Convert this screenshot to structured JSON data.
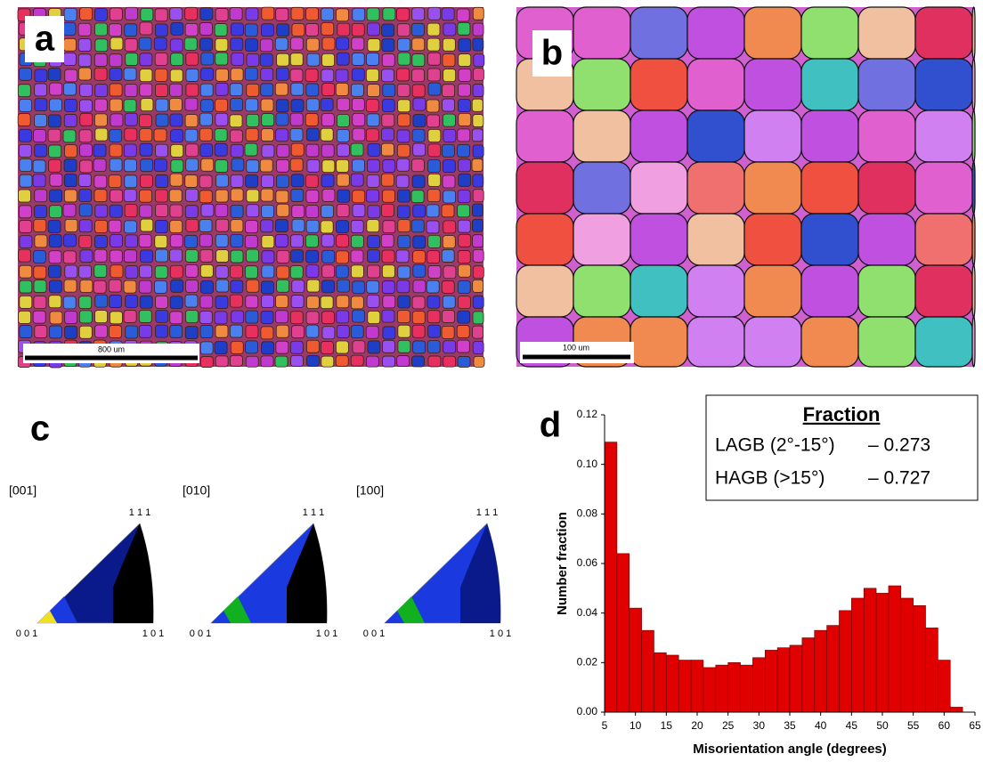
{
  "panels": {
    "a": {
      "label": "a",
      "scale_bar": "800 um"
    },
    "b": {
      "label": "b",
      "scale_bar": "100 um"
    },
    "c": {
      "label": "c",
      "figures": [
        {
          "direction": "[001]",
          "corner_top": "1 1 1",
          "corner_left": "0 0 1",
          "corner_right": "1 0 1"
        },
        {
          "direction": "[010]",
          "corner_top": "1 1 1",
          "corner_left": "0 0 1",
          "corner_right": "1 0 1"
        },
        {
          "direction": "[100]",
          "corner_top": "1 1 1",
          "corner_left": "0 0 1",
          "corner_right": "1 0 1"
        }
      ]
    },
    "d": {
      "label": "d",
      "legend": {
        "title": "Fraction",
        "rows": [
          [
            "LAGB (2°-15°)",
            "– 0.273"
          ],
          [
            "HAGB (>15°)",
            "– 0.727"
          ]
        ]
      }
    }
  },
  "chart_data": {
    "type": "histogram",
    "xlabel": "Misorientation angle (degrees)",
    "ylabel": "Number fraction",
    "color": "#e00000",
    "bins": [
      5,
      7,
      9,
      11,
      13,
      15,
      17,
      19,
      21,
      23,
      25,
      27,
      29,
      31,
      33,
      35,
      37,
      39,
      41,
      43,
      45,
      47,
      49,
      51,
      53,
      55,
      57,
      59,
      61,
      63
    ],
    "values": [
      0.109,
      0.064,
      0.042,
      0.033,
      0.024,
      0.023,
      0.021,
      0.021,
      0.018,
      0.019,
      0.02,
      0.019,
      0.022,
      0.025,
      0.026,
      0.027,
      0.03,
      0.033,
      0.035,
      0.041,
      0.046,
      0.05,
      0.048,
      0.051,
      0.046,
      0.043,
      0.034,
      0.021,
      0.002
    ],
    "xlim": [
      5,
      65
    ],
    "xticks": [
      5,
      10,
      15,
      20,
      25,
      30,
      35,
      40,
      45,
      50,
      55,
      60,
      65
    ],
    "ylim": [
      0,
      0.12
    ],
    "yticks": [
      {
        "value": 0,
        "label": "0.00"
      },
      {
        "value": 0.02,
        "label": "0.02"
      },
      {
        "value": 0.04,
        "label": "0.04"
      },
      {
        "value": 0.06,
        "label": "0.06"
      },
      {
        "value": 0.08,
        "label": "0.08"
      },
      {
        "value": 0.1,
        "label": "0.10"
      },
      {
        "value": 0.12,
        "label": "0.12"
      }
    ]
  }
}
